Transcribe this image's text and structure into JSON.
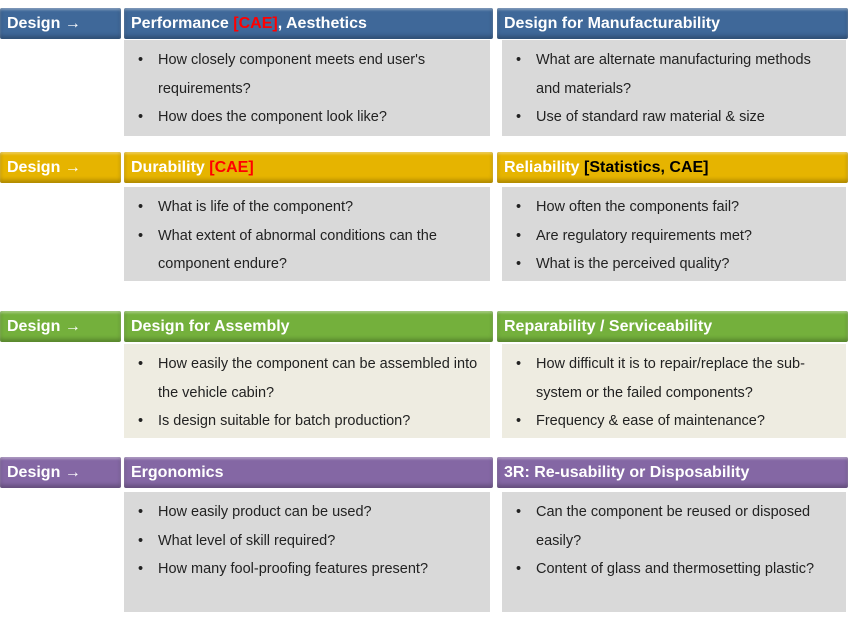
{
  "rows": [
    {
      "label": "Design →",
      "color": "#3f6899",
      "box_color": "#d9d9d9",
      "cols": [
        {
          "pre": "Performance ",
          "tag": "[CAE]",
          "tag_color": "#ff0000",
          "post": ", Aesthetics",
          "bullets": [
            "How closely component meets end user's requirements?",
            "How does the component look like?"
          ]
        },
        {
          "pre": "Design for Manufacturability",
          "tag": "",
          "tag_color": "#ff0000",
          "post": "",
          "bullets": [
            "What are alternate manufacturing methods and materials?",
            "Use of standard  raw material & size"
          ]
        }
      ]
    },
    {
      "label": "Design →",
      "color": "#e6b400",
      "box_color": "#d9d9d9",
      "cols": [
        {
          "pre": "Durability ",
          "tag": "[CAE]",
          "tag_color": "#ff0000",
          "post": "",
          "bullets": [
            "What is life of the component?",
            "What extent of abnormal conditions can the component endure?"
          ]
        },
        {
          "pre": "Reliability ",
          "tag": "[Statistics, CAE]",
          "tag_color": "#000000",
          "post": "",
          "bullets": [
            "How often the components fail?",
            "Are regulatory requirements met?",
            "What is the perceived quality?"
          ]
        }
      ]
    },
    {
      "label": "Design →",
      "color": "#74b03c",
      "box_color": "#eeece1",
      "cols": [
        {
          "pre": "Design for Assembly",
          "tag": "",
          "tag_color": "#ff0000",
          "post": "",
          "bullets": [
            "How easily the component can be assembled into the vehicle cabin?",
            "Is design suitable for batch production?"
          ]
        },
        {
          "pre": "Reparability / Serviceability",
          "tag": "",
          "tag_color": "#ff0000",
          "post": "",
          "bullets": [
            "How difficult it is to repair/replace the sub-system or the failed components?",
            "Frequency  & ease of maintenance?"
          ]
        }
      ]
    },
    {
      "label": "Design →",
      "color": "#8467a4",
      "box_color": "#d9d9d9",
      "cols": [
        {
          "pre": "Ergonomics",
          "tag": "",
          "tag_color": "#ff0000",
          "post": "",
          "bullets": [
            "How easily product can be used?",
            "What level of skill required?",
            "How many fool-proofing features present?"
          ]
        },
        {
          "pre": "3R: Re-usability or Disposability",
          "tag": "",
          "tag_color": "#ff0000",
          "post": "",
          "bullets": [
            "Can the component be reused or disposed easily?",
            "Content of glass and thermosetting plastic?"
          ]
        }
      ]
    }
  ]
}
